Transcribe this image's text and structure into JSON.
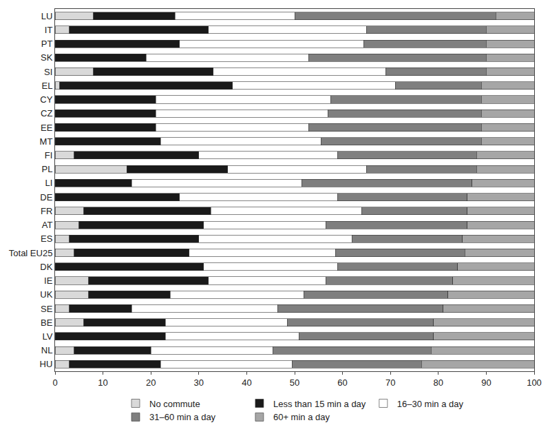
{
  "chart_data": {
    "type": "bar",
    "orientation": "horizontal",
    "stacked": true,
    "legend": "bottom",
    "grid": false,
    "categories": [
      "LU",
      "IT",
      "PT",
      "SK",
      "SI",
      "EL",
      "CY",
      "CZ",
      "EE",
      "MT",
      "FI",
      "PL",
      "LI",
      "DE",
      "FR",
      "AT",
      "ES",
      "Total EU25",
      "DK",
      "IE",
      "UK",
      "SE",
      "BE",
      "LV",
      "NL",
      "HU"
    ],
    "series": [
      {
        "name": "No commute",
        "color": "#d9d9d9",
        "values": [
          8,
          3,
          0,
          0,
          8,
          1,
          0,
          0,
          0,
          0,
          4,
          15,
          0,
          0,
          6,
          5,
          3,
          4,
          0,
          7,
          7,
          3,
          6,
          0,
          4,
          3
        ]
      },
      {
        "name": "Less than 15 min a day",
        "color": "#1a1a1a",
        "values": [
          17,
          29,
          26,
          19,
          25,
          36,
          21,
          21,
          21,
          22,
          26,
          21,
          16,
          26,
          26.5,
          26,
          27,
          24,
          31,
          25,
          17,
          13,
          17,
          23,
          16,
          19
        ]
      },
      {
        "name": "16–30 min a day",
        "color": "#ffffff",
        "values": [
          25,
          33,
          38.5,
          34,
          36,
          34,
          36.5,
          36,
          32,
          33.5,
          29,
          29,
          35.5,
          33,
          31.5,
          25.5,
          32,
          30.5,
          28,
          24.5,
          28,
          30.5,
          25.5,
          28,
          25.5,
          27.5
        ]
      },
      {
        "name": "31–60 min a day",
        "color": "#7f7f7f",
        "values": [
          42,
          25,
          25.5,
          37,
          21,
          18,
          31.5,
          32,
          36,
          33.5,
          29,
          23,
          35.5,
          27,
          22,
          29.5,
          23,
          27,
          25,
          26.5,
          30,
          34.5,
          30.5,
          28,
          33,
          27
        ]
      },
      {
        "name": "60+ min a day",
        "color": "#a6a6a6",
        "values": [
          8,
          10,
          10,
          10,
          10,
          11,
          11,
          11,
          11,
          11,
          12,
          12,
          13,
          14,
          14,
          14,
          15,
          14.5,
          16,
          17,
          18,
          19,
          21,
          21,
          21.5,
          23.5
        ]
      }
    ],
    "xlim": [
      0,
      100
    ],
    "xticks": [
      0,
      10,
      20,
      30,
      40,
      50,
      60,
      70,
      80,
      90,
      100
    ]
  }
}
